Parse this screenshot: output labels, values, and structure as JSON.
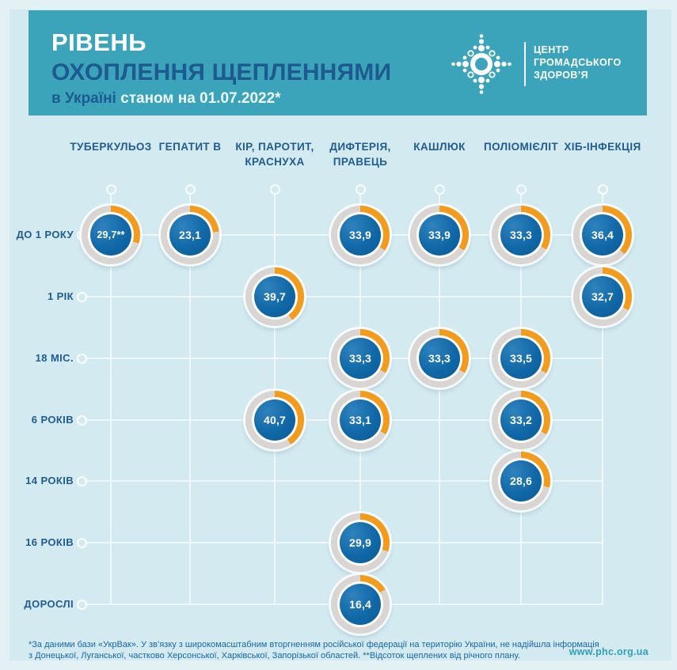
{
  "colors": {
    "teal": "#3ba4ba",
    "panel_bg": "#d3eaf0",
    "border_bg": "#e3f1f5",
    "navy": "#1d5a8f",
    "label": "#215c8e",
    "orange": "#f29b1d",
    "ring_gray": "#d8d5d2",
    "footer_text": "#1767a5",
    "site_link": "#2f9fb9"
  },
  "header": {
    "title_line1": "РІВЕНЬ",
    "title_line2": "ОХОПЛЕННЯ ЩЕПЛЕННЯМИ",
    "subtitle_prefix": "в Україні ",
    "subtitle_date": "станом на 01.07.2022*",
    "logo": {
      "line1": "ЦЕНТР",
      "line2": "ГРОМАДСЬКОГО",
      "line3": "ЗДОРОВ’Я"
    }
  },
  "chart_data": {
    "type": "donut-matrix",
    "title": "Рівень охоплення щепленнями в Україні станом на 01.07.2022",
    "columns": [
      [
        "ТУБЕРКУЛЬОЗ"
      ],
      [
        "ГЕПАТИТ В"
      ],
      [
        "КІР, ПАРОТИТ,",
        "КРАСНУХА"
      ],
      [
        "ДИФТЕРІЯ,",
        "ПРАВЕЦЬ"
      ],
      [
        "КАШЛЮК"
      ],
      [
        "ПОЛІОМІЄЛІТ"
      ],
      [
        "ХІБ-ІНФЕКЦІЯ"
      ]
    ],
    "rows": [
      "ДО 1 РОКУ",
      "1 РІК",
      "18 МІС.",
      "6 РОКІВ",
      "14 РОКІВ",
      "16 РОКІВ",
      "ДОРОСЛІ"
    ],
    "cells": [
      {
        "row": 0,
        "col": 0,
        "value": "29,7**",
        "percent": 29.7
      },
      {
        "row": 0,
        "col": 1,
        "value": "23,1",
        "percent": 23.1
      },
      {
        "row": 0,
        "col": 3,
        "value": "33,9",
        "percent": 33.9
      },
      {
        "row": 0,
        "col": 4,
        "value": "33,9",
        "percent": 33.9
      },
      {
        "row": 0,
        "col": 5,
        "value": "33,3",
        "percent": 33.3
      },
      {
        "row": 0,
        "col": 6,
        "value": "36,4",
        "percent": 36.4
      },
      {
        "row": 1,
        "col": 2,
        "value": "39,7",
        "percent": 39.7
      },
      {
        "row": 1,
        "col": 6,
        "value": "32,7",
        "percent": 32.7
      },
      {
        "row": 2,
        "col": 3,
        "value": "33,3",
        "percent": 33.3
      },
      {
        "row": 2,
        "col": 4,
        "value": "33,3",
        "percent": 33.3
      },
      {
        "row": 2,
        "col": 5,
        "value": "33,5",
        "percent": 33.5
      },
      {
        "row": 3,
        "col": 2,
        "value": "40,7",
        "percent": 40.7
      },
      {
        "row": 3,
        "col": 3,
        "value": "33,1",
        "percent": 33.1
      },
      {
        "row": 3,
        "col": 5,
        "value": "33,2",
        "percent": 33.2
      },
      {
        "row": 4,
        "col": 5,
        "value": "28,6",
        "percent": 28.6
      },
      {
        "row": 5,
        "col": 3,
        "value": "29,9",
        "percent": 29.9
      },
      {
        "row": 6,
        "col": 3,
        "value": "16,4",
        "percent": 16.4
      }
    ]
  },
  "footer": {
    "line1": "*За даними бази «УкрВак».  У зв’язку з широкомасштабним вторгненням російської федерації  на територію України, не надійшла інформація",
    "line2": "з Донецької, Луганської, частково Херсонської, Харківської, Запорізької областей.   **Відсоток щеплених від річного плану.",
    "site": "www.phc.org.ua"
  }
}
